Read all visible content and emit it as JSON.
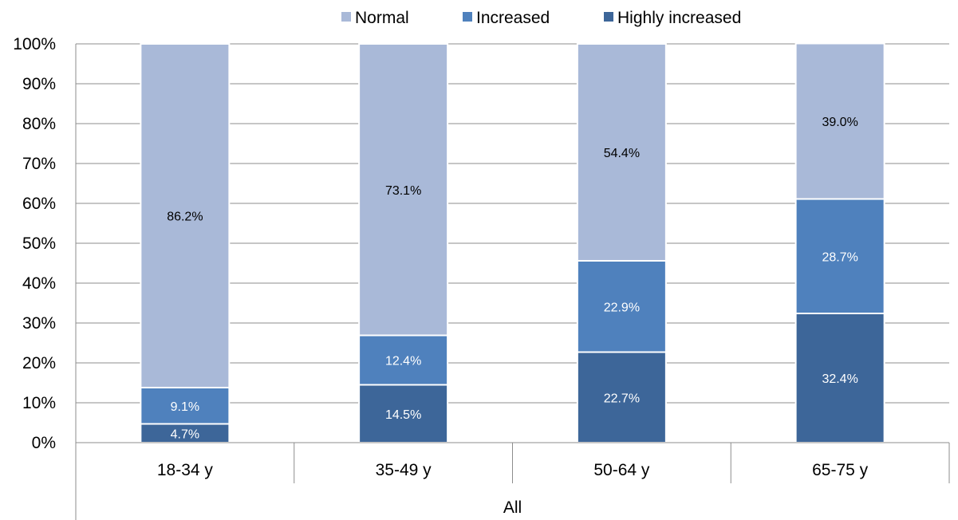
{
  "chart_data": {
    "type": "bar",
    "stacked": true,
    "percent_stacked": true,
    "categories": [
      "18-34 y",
      "35-49 y",
      "50-64 y",
      "65-75 y"
    ],
    "group_label": "All",
    "series": [
      {
        "name": "Highly increased",
        "values": [
          4.7,
          14.5,
          22.7,
          32.4
        ],
        "labels": [
          "4.7%",
          "14.5%",
          "22.7%",
          "32.4%"
        ],
        "color": "#3D6699",
        "label_color": "#FFFFFF"
      },
      {
        "name": "Increased",
        "values": [
          9.1,
          12.4,
          22.9,
          28.7
        ],
        "labels": [
          "9.1%",
          "12.4%",
          "22.9%",
          "28.7%"
        ],
        "color": "#4F81BD",
        "label_color": "#FFFFFF"
      },
      {
        "name": "Normal",
        "values": [
          86.2,
          73.1,
          54.4,
          39.0
        ],
        "labels": [
          "86.2%",
          "73.1%",
          "54.4%",
          "39.0%"
        ],
        "color": "#A9B9D8",
        "label_color": "#000000"
      }
    ],
    "legend": {
      "position": "top",
      "items": [
        "Normal",
        "Increased",
        "Highly increased"
      ]
    },
    "y_axis": {
      "ticks": [
        "0%",
        "10%",
        "20%",
        "30%",
        "40%",
        "50%",
        "60%",
        "70%",
        "80%",
        "90%",
        "100%"
      ],
      "ylim": [
        0,
        100
      ]
    },
    "grid": true
  }
}
